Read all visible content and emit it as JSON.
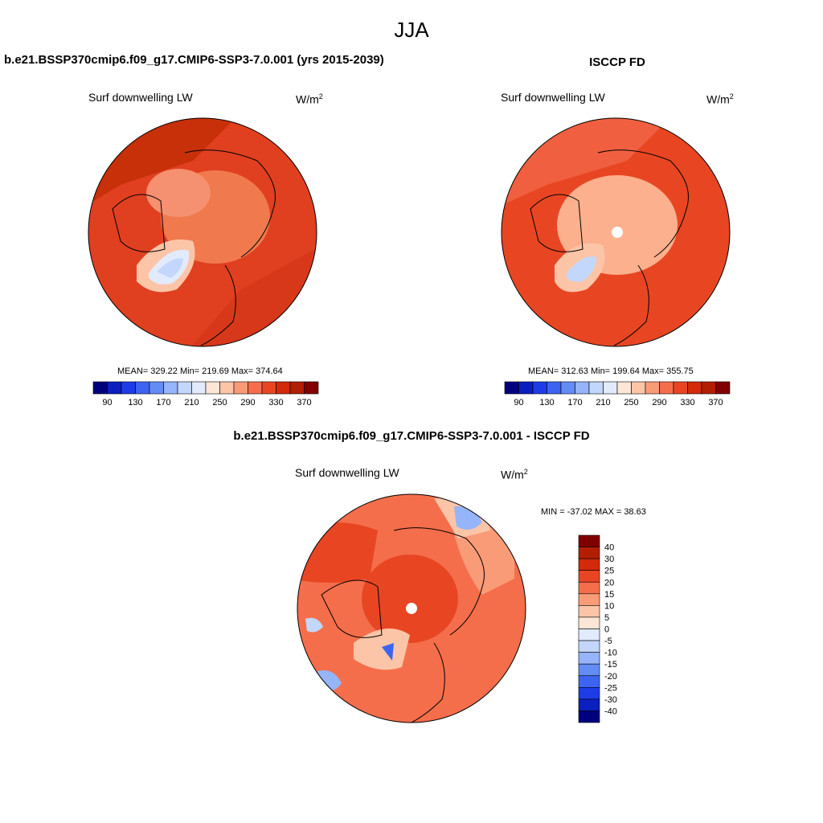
{
  "figure": {
    "season": "JJA",
    "model_title": "b.e21.BSSP370cmip6.f09_g17.CMIP6-SSP3-7.0.001 (yrs 2015-2039)",
    "obs_title": "ISCCP FD",
    "diff_title": "b.e21.BSSP370cmip6.f09_g17.CMIP6-SSP3-7.0.001 - ISCCP FD"
  },
  "panels": {
    "model": {
      "variable": "Surf downwelling LW",
      "unit_base": "W/m",
      "unit_exp": "2",
      "stats_text": "MEAN= 329.22  Min= 219.69  Max= 374.64"
    },
    "obs": {
      "variable": "Surf downwelling LW",
      "unit_base": "W/m",
      "unit_exp": "2",
      "stats_text": "MEAN= 312.63  Min= 199.64  Max= 355.75"
    },
    "diff": {
      "variable": "Surf downwelling LW",
      "unit_base": "W/m",
      "unit_exp": "2",
      "stats_text": "MIN = -37.02 MAX =  38.63"
    }
  },
  "chart_data": [
    {
      "type": "heatmap",
      "projection": "north-polar-stereographic",
      "title": "Surf downwelling LW",
      "units": "W/m2",
      "mean": 329.22,
      "min": 219.69,
      "max": 374.64,
      "colorbar": {
        "orientation": "horizontal",
        "levels": [
          90,
          110,
          130,
          150,
          170,
          190,
          210,
          230,
          250,
          270,
          290,
          310,
          330,
          350,
          370
        ],
        "tick_labels": [
          "90",
          "130",
          "170",
          "210",
          "250",
          "290",
          "330",
          "370"
        ],
        "colors": [
          "#00007f",
          "#0a1fbe",
          "#1e3ce6",
          "#3c64f0",
          "#648cf5",
          "#96b4fa",
          "#c3d7fc",
          "#e1ebfd",
          "#fde6d6",
          "#fcc5a8",
          "#fa9b78",
          "#f56e4b",
          "#e84623",
          "#d22a0a",
          "#b41e00",
          "#800000"
        ]
      }
    },
    {
      "type": "heatmap",
      "projection": "north-polar-stereographic",
      "title": "Surf downwelling LW",
      "units": "W/m2",
      "mean": 312.63,
      "min": 199.64,
      "max": 355.75,
      "colorbar": {
        "orientation": "horizontal",
        "levels": [
          90,
          110,
          130,
          150,
          170,
          190,
          210,
          230,
          250,
          270,
          290,
          310,
          330,
          350,
          370
        ],
        "tick_labels": [
          "90",
          "130",
          "170",
          "210",
          "250",
          "290",
          "330",
          "370"
        ],
        "colors": [
          "#00007f",
          "#0a1fbe",
          "#1e3ce6",
          "#3c64f0",
          "#648cf5",
          "#96b4fa",
          "#c3d7fc",
          "#e1ebfd",
          "#fde6d6",
          "#fcc5a8",
          "#fa9b78",
          "#f56e4b",
          "#e84623",
          "#d22a0a",
          "#b41e00",
          "#800000"
        ]
      }
    },
    {
      "type": "heatmap",
      "projection": "north-polar-stereographic",
      "title": "Surf downwelling LW",
      "units": "W/m2",
      "min": -37.02,
      "max": 38.63,
      "colorbar": {
        "orientation": "vertical",
        "levels": [
          -40,
          -30,
          -25,
          -20,
          -15,
          -10,
          -5,
          0,
          5,
          10,
          15,
          20,
          25,
          30,
          40
        ],
        "tick_labels": [
          "40",
          "30",
          "25",
          "20",
          "15",
          "10",
          "5",
          "0",
          "-5",
          "-10",
          "-15",
          "-20",
          "-25",
          "-30",
          "-40"
        ],
        "colors": [
          "#800000",
          "#b41e00",
          "#d22a0a",
          "#e84623",
          "#f56e4b",
          "#fa9b78",
          "#fcc5a8",
          "#fde6d6",
          "#e1ebfd",
          "#c3d7fc",
          "#96b4fa",
          "#648cf5",
          "#3c64f0",
          "#1e3ce6",
          "#0a1fbe",
          "#00007f"
        ]
      }
    }
  ]
}
